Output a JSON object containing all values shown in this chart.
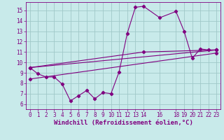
{
  "background_color": "#c8eaea",
  "grid_color": "#a0c8c8",
  "line_color": "#800080",
  "marker": "D",
  "marker_size": 2.2,
  "xlabel": "Windchill (Refroidissement éolien,°C)",
  "xlabel_fontsize": 6.5,
  "xlim": [
    -0.5,
    23.5
  ],
  "ylim": [
    5.5,
    15.8
  ],
  "yticks": [
    6,
    7,
    8,
    9,
    10,
    11,
    12,
    13,
    14,
    15
  ],
  "xticks": [
    0,
    1,
    2,
    3,
    4,
    5,
    6,
    7,
    8,
    9,
    10,
    11,
    12,
    13,
    14,
    16,
    18,
    19,
    20,
    21,
    22,
    23
  ],
  "series1_x": [
    0,
    1,
    2,
    3,
    4,
    5,
    6,
    7,
    8,
    9,
    10,
    11,
    12,
    13,
    14,
    16,
    18,
    19,
    20,
    21,
    22,
    23
  ],
  "series1_y": [
    9.5,
    8.9,
    8.6,
    8.6,
    7.9,
    6.3,
    6.8,
    7.3,
    6.5,
    7.1,
    7.0,
    9.1,
    12.8,
    15.3,
    15.4,
    14.3,
    14.9,
    13.0,
    10.4,
    11.3,
    11.2,
    11.2
  ],
  "series2_x": [
    0,
    23
  ],
  "series2_y": [
    9.5,
    11.2
  ],
  "series3_x": [
    0,
    14,
    23
  ],
  "series3_y": [
    9.5,
    11.0,
    11.2
  ],
  "series4_x": [
    0,
    23
  ],
  "series4_y": [
    8.4,
    10.9
  ],
  "tick_fontsize": 5.5,
  "tick_color": "#800080",
  "spine_color": "#800080",
  "linewidth": 0.8
}
